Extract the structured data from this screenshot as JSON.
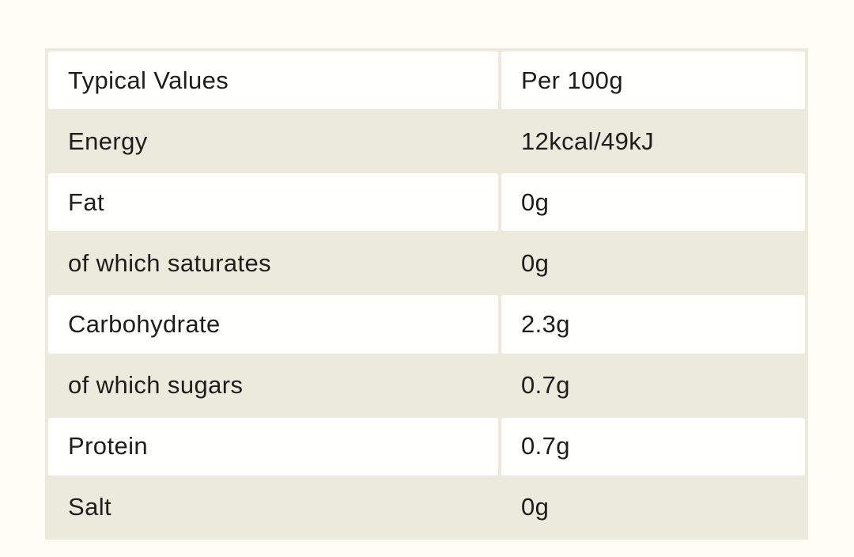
{
  "colors": {
    "page_background": "#FFFDF4",
    "table_background": "#ECE9DD",
    "cell_background": "#FEFEFB",
    "text": "#1D1D1B"
  },
  "table": {
    "header": {
      "label": "Typical Values",
      "value": "Per 100g"
    },
    "rows": [
      {
        "label": "Energy",
        "value": "12kcal/49kJ"
      },
      {
        "label": "Fat",
        "value": "0g"
      },
      {
        "label": "of which saturates",
        "value": "0g"
      },
      {
        "label": "Carbohydrate",
        "value": "2.3g"
      },
      {
        "label": "of which sugars",
        "value": "0.7g"
      },
      {
        "label": "Protein",
        "value": "0.7g"
      },
      {
        "label": "Salt",
        "value": "0g"
      }
    ]
  },
  "chart_data": {
    "type": "table",
    "columns": [
      "Typical Values",
      "Per 100g"
    ],
    "rows": [
      [
        "Energy",
        "12kcal/49kJ"
      ],
      [
        "Fat",
        "0g"
      ],
      [
        "of which saturates",
        "0g"
      ],
      [
        "Carbohydrate",
        "2.3g"
      ],
      [
        "of which sugars",
        "0.7g"
      ],
      [
        "Protein",
        "0.7g"
      ],
      [
        "Salt",
        "0g"
      ]
    ],
    "values_numeric": {
      "energy_kcal": 12,
      "energy_kJ": 49,
      "fat_g": 0,
      "saturates_g": 0,
      "carbohydrate_g": 2.3,
      "sugars_g": 0.7,
      "protein_g": 0.7,
      "salt_g": 0
    },
    "layout": {
      "alternating_rows": true,
      "legend": "none",
      "grid": "cell-gaps"
    }
  }
}
